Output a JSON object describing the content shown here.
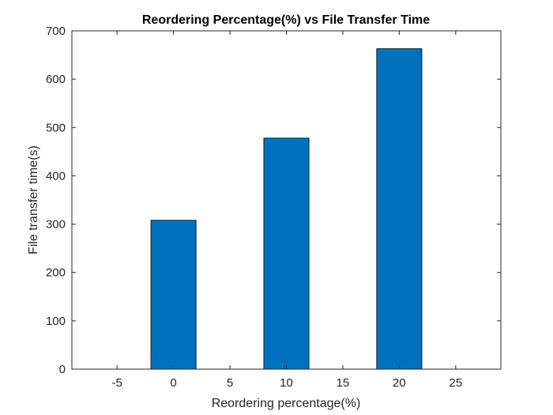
{
  "chart_data": {
    "type": "bar",
    "title": "Reordering Percentage(%) vs File Transfer Time",
    "xlabel": "Reordering percentage(%)",
    "ylabel": "File transfer time(s)",
    "x": [
      0,
      10,
      20
    ],
    "values": [
      308,
      478,
      663
    ],
    "xlim": [
      -9,
      29
    ],
    "ylim": [
      0,
      700
    ],
    "xticks": [
      "-5",
      "0",
      "5",
      "10",
      "15",
      "20",
      "25"
    ],
    "yticks": [
      "0",
      "100",
      "200",
      "300",
      "400",
      "500",
      "600",
      "700"
    ],
    "bar_color": "#0072BD",
    "grid": false,
    "legend": "none"
  }
}
